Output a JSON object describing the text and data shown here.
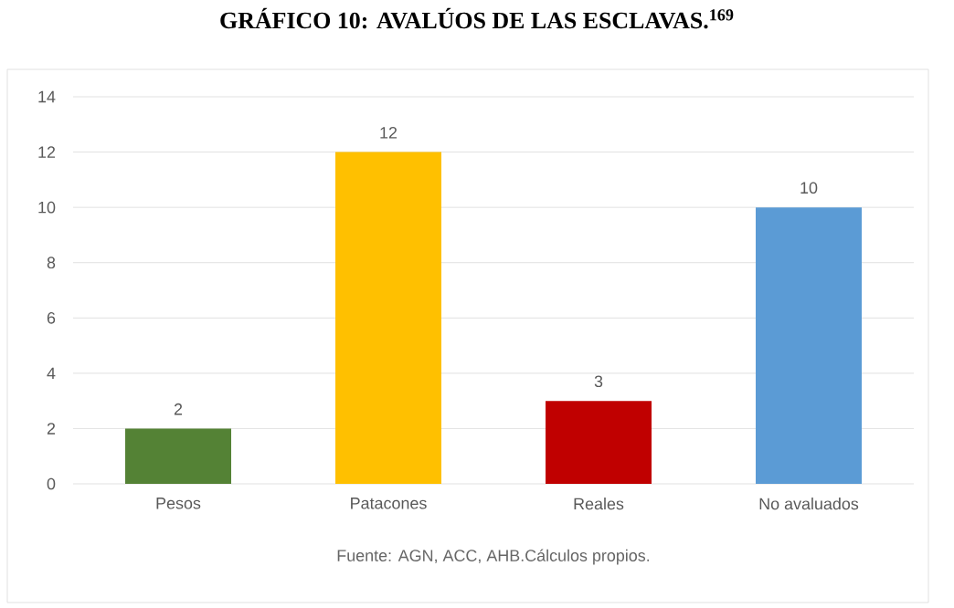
{
  "chart_data": {
    "type": "bar",
    "title": "GRÁFICO 10: AVALÚOS DE LAS ESCLAVAS.$^{169}$",
    "categories": [
      "Pesos",
      "Patacones",
      "Reales",
      "No avaluados"
    ],
    "values": [
      2,
      12,
      3,
      10
    ],
    "colors": [
      "#548235",
      "#ffc000",
      "#c00000",
      "#5b9bd5"
    ],
    "ylim": [
      0,
      14
    ],
    "yticks": [
      0,
      2,
      4,
      6,
      8,
      10,
      12,
      14
    ],
    "grid": "y",
    "data_labels": true,
    "annotations": [
      "Fuente: AGN, ACC, AHB.Cálculos propios."
    ]
  }
}
